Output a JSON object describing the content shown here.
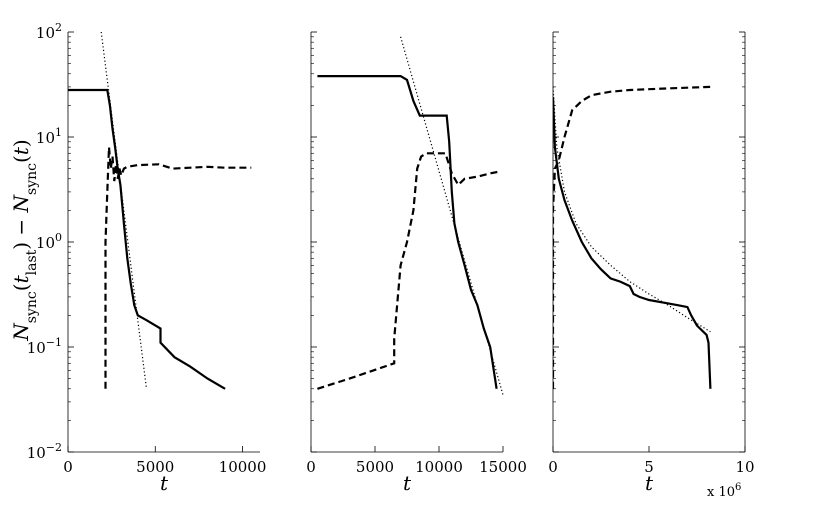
{
  "ylabel": "N_sync(t_last) − N_sync(t)",
  "ylabel_parts": {
    "main1": "N",
    "sub1": "sync",
    "paren_open": "(",
    "t": "t",
    "sub_last": "last",
    "paren_close": ")",
    "minus": " − ",
    "main2": "N",
    "sub2": "sync",
    "paren2_open": "(",
    "t2": "t",
    "paren2_close": ")"
  },
  "y_ticks": [
    {
      "value": 0.01,
      "base": "10",
      "exp": "−2"
    },
    {
      "value": 0.1,
      "base": "10",
      "exp": "−1"
    },
    {
      "value": 1,
      "base": "10",
      "exp": "0"
    },
    {
      "value": 10,
      "base": "10",
      "exp": "1"
    },
    {
      "value": 100,
      "base": "10",
      "exp": "2"
    }
  ],
  "chart_data": [
    {
      "type": "line",
      "xlabel": "t",
      "xlim": [
        0,
        11000
      ],
      "ylim": [
        0.01,
        100
      ],
      "yscale": "log",
      "x_ticks": [
        0,
        5000,
        10000
      ],
      "x_tick_labels": [
        "0",
        "5000",
        "10000"
      ],
      "series": [
        {
          "style": "solid",
          "x": [
            0,
            2250,
            2400,
            2550,
            2700,
            2850,
            3000,
            3200,
            3400,
            3600,
            3800,
            4000,
            4500,
            5300,
            5300,
            6100,
            7000,
            8000,
            9000
          ],
          "y": [
            28,
            28,
            20,
            12,
            8,
            5,
            3.5,
            1.5,
            0.7,
            0.4,
            0.25,
            0.2,
            0.18,
            0.15,
            0.11,
            0.08,
            0.065,
            0.05,
            0.04
          ]
        },
        {
          "style": "dashed",
          "x": [
            2150,
            2150,
            2250,
            2350,
            2450,
            2550,
            2650,
            2750,
            2850,
            2950,
            3050,
            3200,
            3400,
            4000,
            5200,
            6000,
            7000,
            8000,
            9000,
            10500
          ],
          "y": [
            0.04,
            1.0,
            3.0,
            8.0,
            5.0,
            6.5,
            3.8,
            5.5,
            4.0,
            5.0,
            4.3,
            5.0,
            5.2,
            5.4,
            5.5,
            5.0,
            5.1,
            5.2,
            5.1,
            5.1
          ]
        },
        {
          "style": "dotted",
          "x": [
            1900,
            4500
          ],
          "y": [
            100,
            0.04
          ]
        }
      ]
    },
    {
      "type": "line",
      "xlabel": "t",
      "xlim": [
        0,
        15000
      ],
      "ylim": [
        0.01,
        100
      ],
      "yscale": "log",
      "x_ticks": [
        0,
        5000,
        10000,
        15000
      ],
      "x_tick_labels": [
        "0",
        "5000",
        "10000",
        "15000"
      ],
      "series": [
        {
          "style": "solid",
          "x": [
            500,
            7000,
            7500,
            8000,
            8500,
            10600,
            10800,
            11000,
            11200,
            11500,
            12000,
            12500,
            13000,
            13500,
            14000,
            14500
          ],
          "y": [
            38,
            38,
            35,
            22,
            16,
            16,
            9,
            3,
            1.5,
            1.0,
            0.6,
            0.35,
            0.25,
            0.15,
            0.1,
            0.04
          ]
        },
        {
          "style": "dashed",
          "x": [
            500,
            3000,
            6500,
            6500,
            7000,
            7500,
            8000,
            8300,
            8600,
            9000,
            9500,
            10000,
            10500,
            11000,
            11500,
            12000,
            13000,
            14000,
            14800
          ],
          "y": [
            0.04,
            0.05,
            0.07,
            0.12,
            0.6,
            1.0,
            2.0,
            5.0,
            6.5,
            7.0,
            7.0,
            7.0,
            7.0,
            4.5,
            3.5,
            4.0,
            4.2,
            4.5,
            4.7
          ]
        },
        {
          "style": "dotted",
          "x": [
            7000,
            15000
          ],
          "y": [
            90,
            0.035
          ]
        }
      ]
    },
    {
      "type": "line",
      "xlabel": "t",
      "xlim": [
        0,
        10000000
      ],
      "ylim": [
        0.01,
        100
      ],
      "yscale": "log",
      "x_ticks": [
        0,
        5000000,
        10000000
      ],
      "x_tick_labels": [
        "0",
        "5",
        "10"
      ],
      "x_multiplier": {
        "base": "x 10",
        "exp": "6"
      },
      "series": [
        {
          "style": "solid",
          "x": [
            0,
            100000,
            300000,
            600000,
            1000000,
            1500000,
            2000000,
            2500000,
            3000000,
            3500000,
            4000000,
            4200000,
            4500000,
            5000000,
            6000000,
            6500000,
            7000000,
            7200000,
            7500000,
            8000000,
            8100000,
            8200000
          ],
          "y": [
            24,
            8,
            4,
            2.5,
            1.6,
            1.0,
            0.7,
            0.55,
            0.45,
            0.42,
            0.38,
            0.32,
            0.3,
            0.28,
            0.26,
            0.25,
            0.24,
            0.2,
            0.16,
            0.13,
            0.11,
            0.04
          ]
        },
        {
          "style": "dashed",
          "x": [
            0,
            0,
            100000,
            300000,
            600000,
            1000000,
            1500000,
            2000000,
            2500000,
            3000000,
            4000000,
            5000000,
            6000000,
            7000000,
            8200000
          ],
          "y": [
            0.04,
            2.0,
            5.0,
            6.0,
            10.0,
            18.0,
            22.0,
            25.0,
            26.0,
            27.0,
            28.0,
            28.5,
            29.0,
            29.5,
            30.0
          ]
        },
        {
          "style": "dotted",
          "x": [
            0,
            200000,
            600000,
            1200000,
            2000000,
            3000000,
            4000000,
            5000000,
            6000000,
            7000000,
            8200000
          ],
          "y": [
            30,
            8,
            3,
            1.5,
            0.9,
            0.6,
            0.42,
            0.32,
            0.25,
            0.19,
            0.14
          ]
        }
      ]
    }
  ]
}
